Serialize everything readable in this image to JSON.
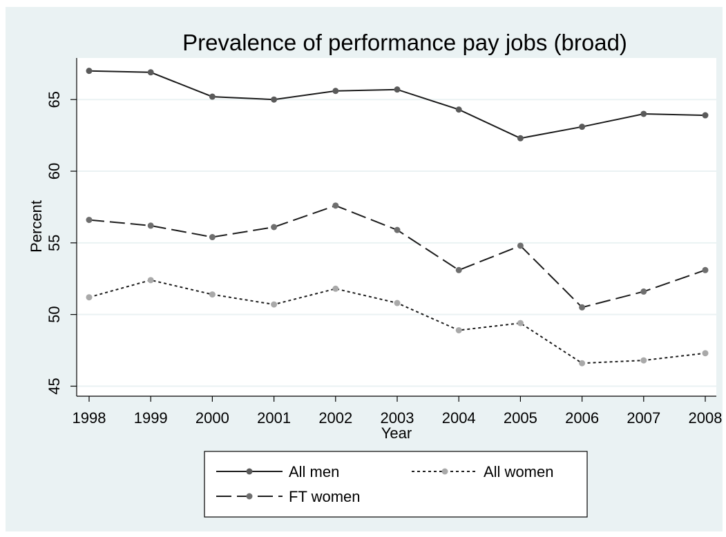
{
  "figure": {
    "caption": ""
  },
  "chart_data": {
    "type": "line",
    "title": "Prevalence of performance pay jobs (broad)",
    "xlabel": "Year",
    "ylabel": "Percent",
    "xlim": [
      1998,
      2008
    ],
    "ylim": [
      44.3,
      67.9
    ],
    "x_ticks": [
      1998,
      1999,
      2000,
      2001,
      2002,
      2003,
      2004,
      2005,
      2006,
      2007,
      2008
    ],
    "y_ticks": [
      45,
      50,
      55,
      60,
      65
    ],
    "grid": true,
    "legend_position": "bottom",
    "colors": {
      "background_outer": "#eaf2f3",
      "plot_background": "#ffffff",
      "gridline": "#eaf2f3",
      "all_men": "#1a1a1a",
      "ft_women": "#1a1a1a",
      "all_women": "#1a1a1a",
      "all_men_marker": "#5a5a5a",
      "ft_women_marker": "#6e6e6e",
      "all_women_marker": "#a9a9a9"
    },
    "series": [
      {
        "name": "All men",
        "style": "solid",
        "values": [
          67.0,
          66.9,
          65.2,
          65.0,
          65.6,
          65.7,
          64.3,
          62.3,
          63.1,
          64.0,
          63.9
        ]
      },
      {
        "name": "All women",
        "style": "dotted",
        "values": [
          51.2,
          52.4,
          51.4,
          50.7,
          51.8,
          50.8,
          48.9,
          49.4,
          46.6,
          46.8,
          47.3
        ]
      },
      {
        "name": "FT women",
        "style": "dashed",
        "values": [
          56.6,
          56.2,
          55.4,
          56.1,
          57.6,
          55.9,
          53.1,
          54.8,
          50.5,
          51.6,
          53.1
        ]
      }
    ]
  }
}
